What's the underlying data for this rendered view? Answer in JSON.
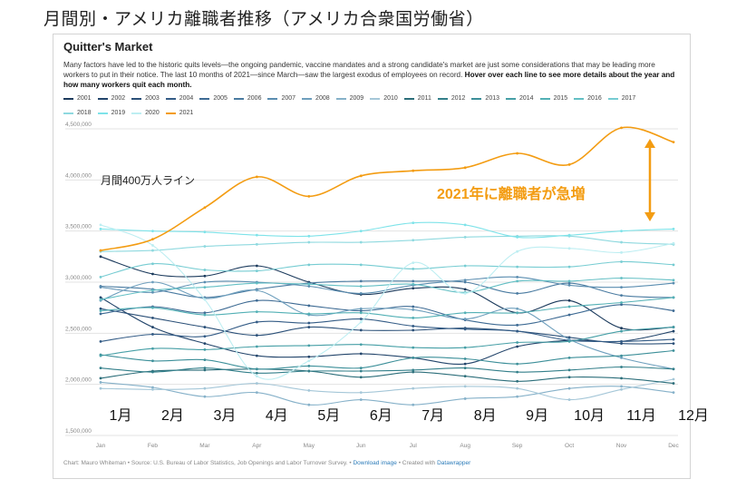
{
  "headline": "月間別・アメリカ離職者推移（アメリカ合衆国労働省）",
  "chart_title": "Quitter's Market",
  "description_main": "Many factors have led to the historic quits levels—the ongoing pandemic, vaccine mandates and a strong candidate's market are just some considerations that may be leading more workers to put in their notice. The last 10 months of 2021—since March—saw the largest exodus of employees on record. ",
  "description_bold": "Hover over each line to see more details about the year and how many workers quit each month.",
  "footer": {
    "credit": "Chart: Mauro Whiteman • Source: U.S. Bureau of Labor Statistics, Job Openings and Labor Turnover Survey. • ",
    "download": "Download image",
    "sep": " • Created with ",
    "tool": "Datawrapper"
  },
  "annotations": {
    "line400": "月間400万人ライン",
    "surge": "2021年に離職者が急増",
    "surge_color": "#f39c12"
  },
  "jp_months": [
    "1月",
    "2月",
    "3月",
    "4月",
    "5月",
    "6月",
    "7月",
    "8月",
    "9月",
    "10月",
    "11月",
    "12月"
  ],
  "chart_data": {
    "type": "line",
    "x": [
      "Jan",
      "Feb",
      "Mar",
      "Apr",
      "May",
      "Jun",
      "Jul",
      "Aug",
      "Sep",
      "Oct",
      "Nov",
      "Dec"
    ],
    "ylim": [
      1500000,
      4500000
    ],
    "yticks": [
      1500000,
      2000000,
      2500000,
      3000000,
      3500000,
      4000000,
      4500000
    ],
    "ytick_labels": [
      "1,500,000",
      "2,000,000",
      "2,500,000",
      "3,000,000",
      "3,500,000",
      "4,000,000",
      "4,500,000"
    ],
    "grid": true,
    "legend_position": "top",
    "series": [
      {
        "name": "2001",
        "color": "#1b3a5c",
        "values": [
          3250000,
          3080000,
          3060000,
          3160000,
          3000000,
          2880000,
          2940000,
          2930000,
          2700000,
          2820000,
          2550000,
          2560000
        ]
      },
      {
        "name": "2002",
        "color": "#23456b",
        "values": [
          2850000,
          2560000,
          2400000,
          2280000,
          2270000,
          2300000,
          2260000,
          2200000,
          2370000,
          2430000,
          2420000,
          2520000
        ]
      },
      {
        "name": "2003",
        "color": "#2b5078",
        "values": [
          2740000,
          2650000,
          2560000,
          2480000,
          2560000,
          2530000,
          2530000,
          2550000,
          2520000,
          2460000,
          2400000,
          2400000
        ]
      },
      {
        "name": "2004",
        "color": "#345c86",
        "values": [
          2420000,
          2490000,
          2470000,
          2610000,
          2600000,
          2640000,
          2570000,
          2540000,
          2520000,
          2430000,
          2420000,
          2440000
        ]
      },
      {
        "name": "2005",
        "color": "#3d6a93",
        "values": [
          2690000,
          2760000,
          2700000,
          2820000,
          2770000,
          2720000,
          2760000,
          2630000,
          2580000,
          2680000,
          2780000,
          2720000
        ]
      },
      {
        "name": "2006",
        "color": "#4a7ba1",
        "values": [
          2960000,
          2930000,
          2850000,
          2930000,
          2990000,
          3010000,
          3010000,
          3000000,
          2890000,
          2990000,
          2870000,
          2850000
        ]
      },
      {
        "name": "2007",
        "color": "#5a8db0",
        "values": [
          2950000,
          2900000,
          3000000,
          3000000,
          2960000,
          2890000,
          2970000,
          3020000,
          3050000,
          2970000,
          2950000,
          2990000
        ]
      },
      {
        "name": "2008",
        "color": "#6e9fbd",
        "values": [
          2820000,
          3000000,
          2840000,
          2920000,
          2680000,
          2740000,
          2730000,
          2640000,
          2740000,
          2440000,
          2260000,
          2150000
        ]
      },
      {
        "name": "2009",
        "color": "#86b1c9",
        "values": [
          2020000,
          1970000,
          1880000,
          1920000,
          1800000,
          1850000,
          1800000,
          1860000,
          1880000,
          1960000,
          1980000,
          1920000
        ]
      },
      {
        "name": "2010",
        "color": "#a5c7d8",
        "values": [
          1960000,
          1950000,
          1960000,
          2010000,
          1940000,
          1920000,
          1960000,
          1980000,
          1960000,
          1850000,
          1950000,
          2050000
        ]
      },
      {
        "name": "2011",
        "color": "#2c6e7a",
        "values": [
          2060000,
          2130000,
          2140000,
          2150000,
          2130000,
          2070000,
          2120000,
          2080000,
          2030000,
          2070000,
          2060000,
          2010000
        ]
      },
      {
        "name": "2012",
        "color": "#337f8a",
        "values": [
          2160000,
          2120000,
          2160000,
          2110000,
          2130000,
          2130000,
          2140000,
          2160000,
          2120000,
          2140000,
          2170000,
          2150000
        ]
      },
      {
        "name": "2013",
        "color": "#3c8f99",
        "values": [
          2290000,
          2230000,
          2240000,
          2150000,
          2180000,
          2160000,
          2260000,
          2250000,
          2200000,
          2260000,
          2280000,
          2330000
        ]
      },
      {
        "name": "2014",
        "color": "#469fa6",
        "values": [
          2280000,
          2350000,
          2340000,
          2370000,
          2380000,
          2390000,
          2360000,
          2360000,
          2410000,
          2420000,
          2520000,
          2560000
        ]
      },
      {
        "name": "2015",
        "color": "#52b0b5",
        "values": [
          2720000,
          2750000,
          2680000,
          2710000,
          2690000,
          2700000,
          2650000,
          2700000,
          2700000,
          2760000,
          2800000,
          2850000
        ]
      },
      {
        "name": "2016",
        "color": "#63bfc4",
        "values": [
          2830000,
          2920000,
          2950000,
          2990000,
          2980000,
          2960000,
          2980000,
          2900000,
          3010000,
          3010000,
          3040000,
          3020000
        ]
      },
      {
        "name": "2017",
        "color": "#76ccd2",
        "values": [
          3050000,
          3180000,
          3120000,
          3110000,
          3170000,
          3170000,
          3130000,
          3160000,
          3150000,
          3150000,
          3200000,
          3170000
        ]
      },
      {
        "name": "2018",
        "color": "#8fd9df",
        "values": [
          3300000,
          3310000,
          3350000,
          3370000,
          3390000,
          3390000,
          3410000,
          3440000,
          3450000,
          3450000,
          3390000,
          3370000
        ]
      },
      {
        "name": "2019",
        "color": "#7ee3e9",
        "values": [
          3520000,
          3500000,
          3490000,
          3460000,
          3450000,
          3500000,
          3580000,
          3560000,
          3440000,
          3460000,
          3500000,
          3520000
        ]
      },
      {
        "name": "2020",
        "color": "#bdeef2",
        "values": [
          3560000,
          3360000,
          2830000,
          2080000,
          2230000,
          2610000,
          3190000,
          2890000,
          3300000,
          3330000,
          3290000,
          3380000
        ]
      },
      {
        "name": "2021",
        "color": "#f39c12",
        "values": [
          3310000,
          3420000,
          3730000,
          4030000,
          3840000,
          4040000,
          4090000,
          4120000,
          4260000,
          4150000,
          4510000,
          4370000
        ]
      }
    ]
  }
}
